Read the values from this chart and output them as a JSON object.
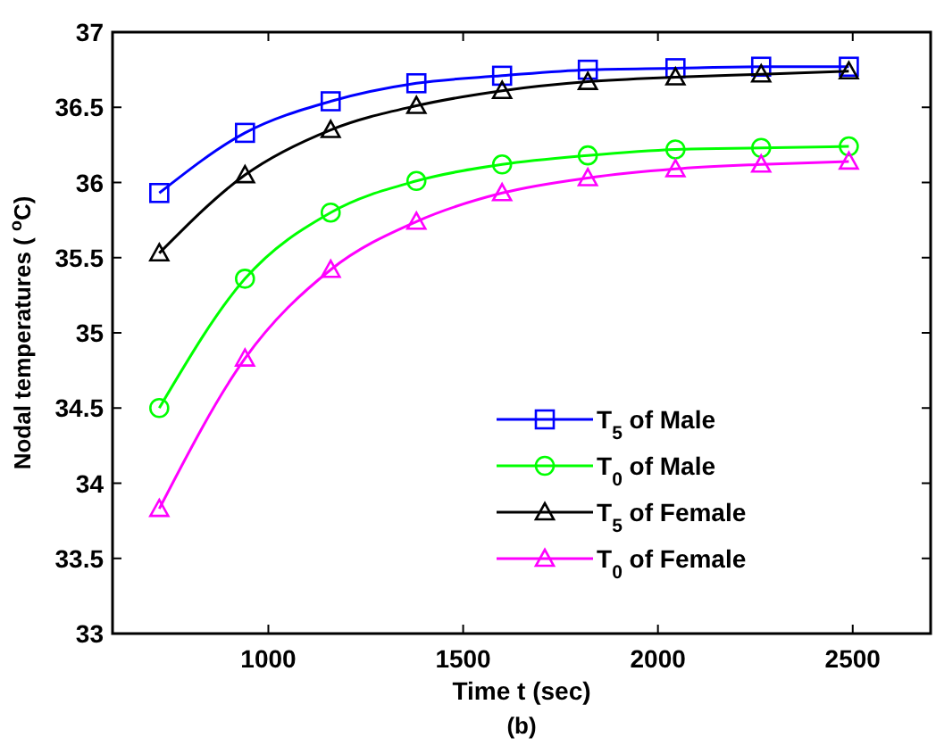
{
  "chart_data": {
    "type": "line",
    "xlabel": "Time t (sec)",
    "ylabel": "Nodal temperatures ( $^{o}$C)",
    "annotations": [
      "(b)"
    ],
    "x": [
      720,
      940,
      1160,
      1380,
      1600,
      1820,
      2045,
      2265,
      2490
    ],
    "xlim": [
      600,
      2700
    ],
    "xticks": [
      1000,
      1500,
      2000,
      2500
    ],
    "ylim": [
      33,
      37
    ],
    "yticks": [
      33,
      33.5,
      34,
      34.5,
      35,
      35.5,
      36,
      36.5,
      37
    ],
    "legend": "bottom right",
    "grid": false,
    "series": [
      {
        "name": "T$_{5}$ of Male",
        "color": "#0000ff",
        "marker": "square",
        "values": [
          35.93,
          36.33,
          36.54,
          36.66,
          36.71,
          36.75,
          36.76,
          36.77,
          36.77
        ]
      },
      {
        "name": "T$_{0}$ of Male",
        "color": "#00ff00",
        "marker": "circle",
        "values": [
          34.5,
          35.36,
          35.8,
          36.01,
          36.12,
          36.18,
          36.22,
          36.23,
          36.24
        ]
      },
      {
        "name": "T$_{5}$ of Female",
        "color": "#000000",
        "marker": "triangle",
        "values": [
          35.53,
          36.05,
          36.35,
          36.51,
          36.61,
          36.67,
          36.7,
          36.72,
          36.74
        ]
      },
      {
        "name": "T$_{0}$ of Female",
        "color": "#ff00ff",
        "marker": "triangle",
        "values": [
          33.83,
          34.83,
          35.42,
          35.74,
          35.93,
          36.03,
          36.09,
          36.12,
          36.14
        ]
      }
    ]
  }
}
